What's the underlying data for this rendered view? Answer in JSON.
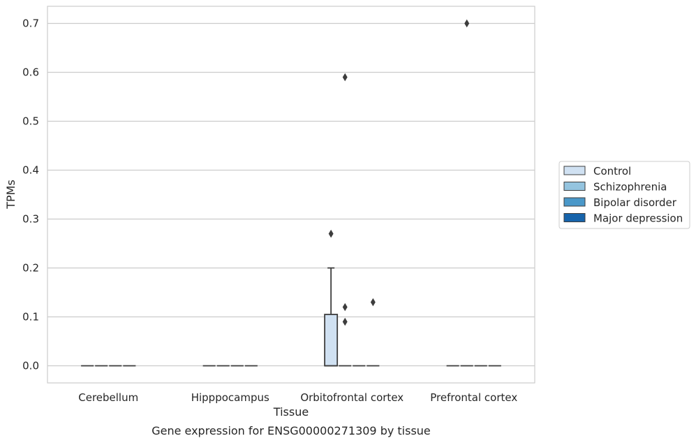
{
  "chart_data": {
    "type": "box",
    "title": "",
    "caption": "Gene expression for ENSG00000271309 by tissue",
    "xlabel": "Tissue",
    "ylabel": "TPMs",
    "ylim": [
      -0.035,
      0.735
    ],
    "yticks": [
      "0.0",
      "0.1",
      "0.2",
      "0.3",
      "0.4",
      "0.5",
      "0.6",
      "0.7"
    ],
    "grid": true,
    "legend_position": "right",
    "categories": [
      "Cerebellum",
      "Hipppocampus",
      "Orbitofrontal cortex",
      "Prefrontal cortex"
    ],
    "series": [
      {
        "name": "Control",
        "color": "#d0e1f2",
        "boxes": [
          {
            "category": "Cerebellum",
            "q1": 0,
            "median": 0,
            "q3": 0,
            "whisker_low": 0,
            "whisker_high": 0,
            "outliers": []
          },
          {
            "category": "Hipppocampus",
            "q1": 0,
            "median": 0,
            "q3": 0,
            "whisker_low": 0,
            "whisker_high": 0,
            "outliers": []
          },
          {
            "category": "Orbitofrontal cortex",
            "q1": 0,
            "median": 0,
            "q3": 0.105,
            "whisker_low": 0,
            "whisker_high": 0.2,
            "outliers": [
              0.27
            ]
          },
          {
            "category": "Prefrontal cortex",
            "q1": 0,
            "median": 0,
            "q3": 0,
            "whisker_low": 0,
            "whisker_high": 0,
            "outliers": []
          }
        ]
      },
      {
        "name": "Schizophrenia",
        "color": "#94c4df",
        "boxes": [
          {
            "category": "Cerebellum",
            "q1": 0,
            "median": 0,
            "q3": 0,
            "whisker_low": 0,
            "whisker_high": 0,
            "outliers": []
          },
          {
            "category": "Hipppocampus",
            "q1": 0,
            "median": 0,
            "q3": 0,
            "whisker_low": 0,
            "whisker_high": 0,
            "outliers": []
          },
          {
            "category": "Orbitofrontal cortex",
            "q1": 0,
            "median": 0,
            "q3": 0,
            "whisker_low": 0,
            "whisker_high": 0,
            "outliers": [
              0.59,
              0.12,
              0.09
            ]
          },
          {
            "category": "Prefrontal cortex",
            "q1": 0,
            "median": 0,
            "q3": 0,
            "whisker_low": 0,
            "whisker_high": 0,
            "outliers": [
              0.7
            ]
          }
        ]
      },
      {
        "name": "Bipolar disorder",
        "color": "#4a98c9",
        "boxes": [
          {
            "category": "Cerebellum",
            "q1": 0,
            "median": 0,
            "q3": 0,
            "whisker_low": 0,
            "whisker_high": 0,
            "outliers": []
          },
          {
            "category": "Hipppocampus",
            "q1": 0,
            "median": 0,
            "q3": 0,
            "whisker_low": 0,
            "whisker_high": 0,
            "outliers": []
          },
          {
            "category": "Orbitofrontal cortex",
            "q1": 0,
            "median": 0,
            "q3": 0,
            "whisker_low": 0,
            "whisker_high": 0,
            "outliers": []
          },
          {
            "category": "Prefrontal cortex",
            "q1": 0,
            "median": 0,
            "q3": 0,
            "whisker_low": 0,
            "whisker_high": 0,
            "outliers": []
          }
        ]
      },
      {
        "name": "Major depression",
        "color": "#1764ab",
        "boxes": [
          {
            "category": "Cerebellum",
            "q1": 0,
            "median": 0,
            "q3": 0,
            "whisker_low": 0,
            "whisker_high": 0,
            "outliers": []
          },
          {
            "category": "Hipppocampus",
            "q1": 0,
            "median": 0,
            "q3": 0,
            "whisker_low": 0,
            "whisker_high": 0,
            "outliers": []
          },
          {
            "category": "Orbitofrontal cortex",
            "q1": 0,
            "median": 0,
            "q3": 0,
            "whisker_low": 0,
            "whisker_high": 0,
            "outliers": [
              0.13
            ]
          },
          {
            "category": "Prefrontal cortex",
            "q1": 0,
            "median": 0,
            "q3": 0,
            "whisker_low": 0,
            "whisker_high": 0,
            "outliers": []
          }
        ]
      }
    ]
  }
}
